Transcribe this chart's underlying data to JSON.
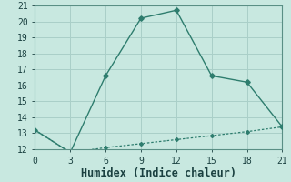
{
  "xlabel": "Humidex (Indice chaleur)",
  "xlim": [
    0,
    21
  ],
  "ylim": [
    12,
    21
  ],
  "xticks": [
    0,
    3,
    6,
    9,
    12,
    15,
    18,
    21
  ],
  "yticks": [
    12,
    13,
    14,
    15,
    16,
    17,
    18,
    19,
    20,
    21
  ],
  "line1_x": [
    0,
    3,
    6,
    9,
    12,
    15,
    18,
    21
  ],
  "line1_y": [
    13.2,
    11.8,
    16.6,
    20.2,
    20.7,
    16.6,
    16.2,
    13.4
  ],
  "line2_x": [
    0,
    3,
    6,
    9,
    12,
    15,
    18,
    21
  ],
  "line2_y": [
    13.2,
    11.8,
    12.1,
    12.35,
    12.6,
    12.85,
    13.1,
    13.4
  ],
  "line_color": "#2e7d6e",
  "bg_color": "#c8e8e0",
  "grid_color": "#aacfc8",
  "spine_color": "#5a8f85",
  "tick_color": "#1a4040",
  "tick_fontsize": 7,
  "xlabel_fontsize": 8.5
}
